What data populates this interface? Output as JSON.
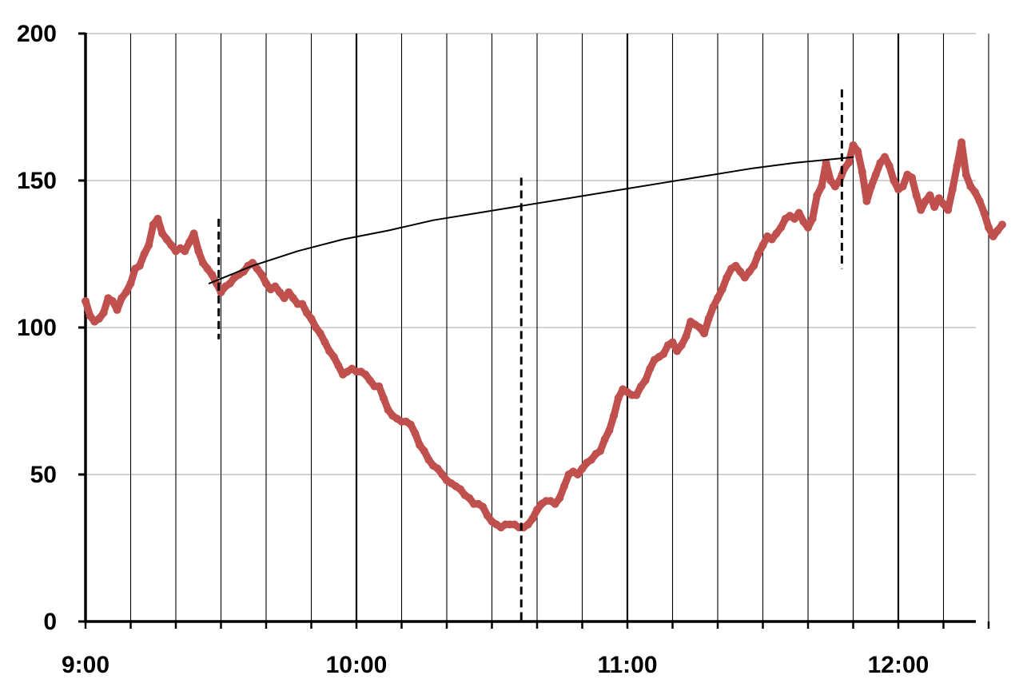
{
  "chart_data": {
    "type": "line",
    "title": "",
    "xlabel": "",
    "ylabel": "",
    "x_unit": "minutes after 9:00",
    "xlim": [
      0,
      206
    ],
    "ylim": [
      0,
      200
    ],
    "grid": true,
    "legend": "none",
    "x_tick_labels": [
      {
        "value": 0,
        "label": "9:00"
      },
      {
        "value": 60,
        "label": "10:00"
      },
      {
        "value": 120,
        "label": "11:00"
      },
      {
        "value": 180,
        "label": "12:00"
      }
    ],
    "y_ticks": [
      0,
      50,
      100,
      150,
      200
    ],
    "series": [
      {
        "color": "#c0504d",
        "points": [
          [
            0,
            109
          ],
          [
            1,
            104
          ],
          [
            2,
            102
          ],
          [
            3,
            103
          ],
          [
            4,
            105
          ],
          [
            5,
            110
          ],
          [
            6,
            109
          ],
          [
            7,
            106
          ],
          [
            8,
            110
          ],
          [
            9,
            112
          ],
          [
            10,
            115
          ],
          [
            11,
            120
          ],
          [
            12,
            121
          ],
          [
            13,
            125
          ],
          [
            14,
            128
          ],
          [
            15,
            135
          ],
          [
            16,
            137
          ],
          [
            17,
            132
          ],
          [
            18,
            130
          ],
          [
            19,
            128
          ],
          [
            20,
            126
          ],
          [
            21,
            127
          ],
          [
            22,
            126
          ],
          [
            23,
            129
          ],
          [
            24,
            132
          ],
          [
            25,
            126
          ],
          [
            26,
            122
          ],
          [
            27,
            120
          ],
          [
            28,
            118
          ],
          [
            29,
            115
          ],
          [
            30,
            112
          ],
          [
            31,
            114
          ],
          [
            32,
            115
          ],
          [
            33,
            117
          ],
          [
            34,
            118
          ],
          [
            35,
            119
          ],
          [
            36,
            121
          ],
          [
            37,
            122
          ],
          [
            38,
            120
          ],
          [
            39,
            118
          ],
          [
            40,
            115
          ],
          [
            41,
            113
          ],
          [
            42,
            114
          ],
          [
            43,
            112
          ],
          [
            44,
            110
          ],
          [
            45,
            112
          ],
          [
            46,
            110
          ],
          [
            47,
            108
          ],
          [
            48,
            108
          ],
          [
            49,
            105
          ],
          [
            50,
            103
          ],
          [
            51,
            100
          ],
          [
            52,
            98
          ],
          [
            53,
            95
          ],
          [
            54,
            92
          ],
          [
            55,
            90
          ],
          [
            56,
            87
          ],
          [
            57,
            84
          ],
          [
            58,
            85
          ],
          [
            59,
            86
          ],
          [
            60,
            85
          ],
          [
            61,
            85
          ],
          [
            62,
            84
          ],
          [
            63,
            82
          ],
          [
            64,
            80
          ],
          [
            65,
            80
          ],
          [
            66,
            76
          ],
          [
            67,
            72
          ],
          [
            68,
            70
          ],
          [
            69,
            69
          ],
          [
            70,
            68
          ],
          [
            71,
            68
          ],
          [
            72,
            67
          ],
          [
            73,
            64
          ],
          [
            74,
            60
          ],
          [
            75,
            58
          ],
          [
            76,
            55
          ],
          [
            77,
            53
          ],
          [
            78,
            52
          ],
          [
            79,
            50
          ],
          [
            80,
            48
          ],
          [
            81,
            47
          ],
          [
            82,
            46
          ],
          [
            83,
            45
          ],
          [
            84,
            43
          ],
          [
            85,
            42
          ],
          [
            86,
            40
          ],
          [
            87,
            40
          ],
          [
            88,
            39
          ],
          [
            89,
            36
          ],
          [
            90,
            34
          ],
          [
            91,
            33
          ],
          [
            92,
            32
          ],
          [
            93,
            33
          ],
          [
            94,
            33
          ],
          [
            95,
            33
          ],
          [
            96,
            32
          ],
          [
            97,
            32
          ],
          [
            98,
            33
          ],
          [
            99,
            35
          ],
          [
            100,
            38
          ],
          [
            101,
            40
          ],
          [
            102,
            41
          ],
          [
            103,
            41
          ],
          [
            104,
            40
          ],
          [
            105,
            42
          ],
          [
            106,
            46
          ],
          [
            107,
            50
          ],
          [
            108,
            51
          ],
          [
            109,
            50
          ],
          [
            110,
            52
          ],
          [
            111,
            54
          ],
          [
            112,
            55
          ],
          [
            113,
            57
          ],
          [
            114,
            58
          ],
          [
            115,
            62
          ],
          [
            116,
            65
          ],
          [
            117,
            70
          ],
          [
            118,
            76
          ],
          [
            119,
            79
          ],
          [
            120,
            78
          ],
          [
            121,
            77
          ],
          [
            122,
            77
          ],
          [
            123,
            80
          ],
          [
            124,
            82
          ],
          [
            125,
            86
          ],
          [
            126,
            89
          ],
          [
            127,
            90
          ],
          [
            128,
            91
          ],
          [
            129,
            94
          ],
          [
            130,
            95
          ],
          [
            131,
            92
          ],
          [
            132,
            94
          ],
          [
            133,
            97
          ],
          [
            134,
            102
          ],
          [
            135,
            101
          ],
          [
            136,
            100
          ],
          [
            137,
            98
          ],
          [
            138,
            103
          ],
          [
            139,
            107
          ],
          [
            140,
            110
          ],
          [
            141,
            113
          ],
          [
            142,
            117
          ],
          [
            143,
            120
          ],
          [
            144,
            121
          ],
          [
            145,
            119
          ],
          [
            146,
            117
          ],
          [
            147,
            119
          ],
          [
            148,
            121
          ],
          [
            149,
            125
          ],
          [
            150,
            128
          ],
          [
            151,
            131
          ],
          [
            152,
            130
          ],
          [
            153,
            132
          ],
          [
            154,
            134
          ],
          [
            155,
            137
          ],
          [
            156,
            138
          ],
          [
            157,
            137
          ],
          [
            158,
            139
          ],
          [
            159,
            136
          ],
          [
            160,
            134
          ],
          [
            161,
            137
          ],
          [
            162,
            145
          ],
          [
            163,
            148
          ],
          [
            164,
            156
          ],
          [
            165,
            150
          ],
          [
            166,
            148
          ],
          [
            167,
            150
          ],
          [
            168,
            154
          ],
          [
            169,
            156
          ],
          [
            170,
            162
          ],
          [
            171,
            160
          ],
          [
            172,
            153
          ],
          [
            173,
            143
          ],
          [
            174,
            148
          ],
          [
            175,
            152
          ],
          [
            176,
            156
          ],
          [
            177,
            158
          ],
          [
            178,
            155
          ],
          [
            179,
            150
          ],
          [
            180,
            147
          ],
          [
            181,
            148
          ],
          [
            182,
            152
          ],
          [
            183,
            151
          ],
          [
            184,
            145
          ],
          [
            185,
            140
          ],
          [
            186,
            143
          ],
          [
            187,
            145
          ],
          [
            188,
            141
          ],
          [
            189,
            144
          ],
          [
            190,
            142
          ],
          [
            191,
            140
          ],
          [
            192,
            147
          ],
          [
            193,
            155
          ],
          [
            194,
            163
          ],
          [
            195,
            152
          ],
          [
            196,
            148
          ],
          [
            197,
            146
          ],
          [
            198,
            143
          ],
          [
            199,
            139
          ],
          [
            200,
            134
          ],
          [
            201,
            131
          ],
          [
            202,
            133
          ],
          [
            203,
            135
          ]
        ]
      },
      {
        "color": "#000000",
        "points": [
          [
            27.4,
            115
          ],
          [
            37,
            121
          ],
          [
            47,
            126
          ],
          [
            57,
            130
          ],
          [
            67,
            133
          ],
          [
            77,
            136.5
          ],
          [
            87,
            139
          ],
          [
            97,
            141.5
          ],
          [
            107,
            144
          ],
          [
            117,
            146.5
          ],
          [
            127,
            149
          ],
          [
            137,
            151.5
          ],
          [
            147,
            154
          ],
          [
            157,
            156
          ],
          [
            167,
            157.5
          ],
          [
            170,
            158
          ]
        ]
      }
    ],
    "annotations": [
      {
        "type": "vertical-dashed-line",
        "x": 29.5,
        "y_from": 96,
        "y_to": 137
      },
      {
        "type": "vertical-dashed-line",
        "x": 96.5,
        "y_from": 0,
        "y_to": 151
      },
      {
        "type": "vertical-dashed-line",
        "x": 167.5,
        "y_from": 120,
        "y_to": 181
      }
    ]
  }
}
